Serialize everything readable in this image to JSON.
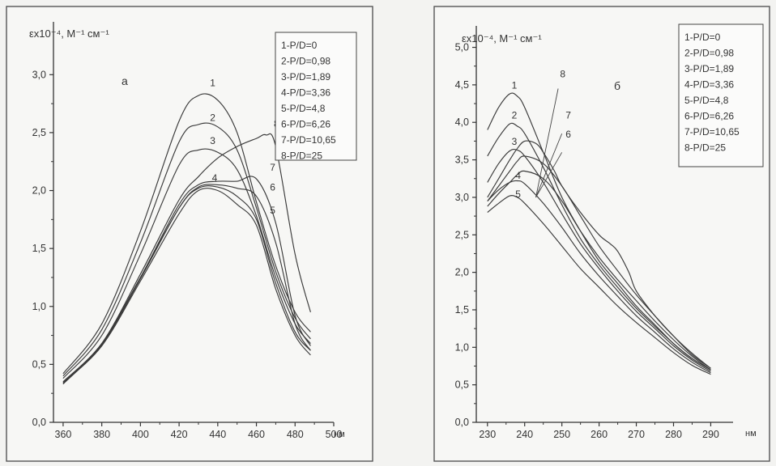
{
  "chart_data": [
    {
      "type": "line",
      "title": "а",
      "ylabel": "εx10⁻⁴, M⁻¹ см⁻¹",
      "xlabel": "нм",
      "xlim": [
        355,
        500
      ],
      "ylim": [
        0,
        3.4
      ],
      "xticks": [
        360,
        380,
        400,
        420,
        440,
        460,
        480,
        500
      ],
      "xtick_labels": [
        "360",
        "380",
        "400",
        "420",
        "440",
        "460",
        "480",
        "500"
      ],
      "yticks": [
        0,
        0.5,
        1.0,
        1.5,
        2.0,
        2.5,
        3.0
      ],
      "ytick_labels": [
        "0,0",
        "0,5",
        "1,0",
        "1,5",
        "2,0",
        "2,5",
        "3,0"
      ],
      "legend": [
        "1-P/D=0",
        "2-P/D=0,98",
        "3-P/D=1,89",
        "4-P/D=3,36",
        "5-P/D=4,8",
        "6-P/D=6,26",
        "7-P/D=10,65",
        "8-P/D=25"
      ],
      "legend_position": "top-right",
      "grid": false,
      "series": [
        {
          "name": "1",
          "label_at": [
            436,
            2.9
          ],
          "x": [
            360,
            380,
            400,
            420,
            430,
            440,
            450,
            460,
            470,
            480,
            488
          ],
          "y": [
            0.42,
            0.85,
            1.65,
            2.6,
            2.82,
            2.78,
            2.5,
            1.9,
            1.35,
            0.95,
            0.78
          ]
        },
        {
          "name": "2",
          "label_at": [
            436,
            2.6
          ],
          "x": [
            360,
            380,
            400,
            420,
            430,
            440,
            450,
            460,
            470,
            480,
            488
          ],
          "y": [
            0.4,
            0.8,
            1.55,
            2.42,
            2.57,
            2.55,
            2.35,
            1.85,
            1.3,
            0.9,
            0.72
          ]
        },
        {
          "name": "3",
          "label_at": [
            436,
            2.4
          ],
          "x": [
            360,
            380,
            400,
            420,
            430,
            440,
            450,
            460,
            470,
            480,
            488
          ],
          "y": [
            0.38,
            0.75,
            1.45,
            2.22,
            2.35,
            2.33,
            2.18,
            1.78,
            1.25,
            0.85,
            0.68
          ]
        },
        {
          "name": "4",
          "label_at": [
            437,
            2.08
          ],
          "x": [
            360,
            380,
            400,
            420,
            430,
            440,
            450,
            460,
            470,
            480,
            488
          ],
          "y": [
            0.35,
            0.68,
            1.25,
            1.85,
            2.02,
            2.03,
            1.95,
            1.75,
            1.2,
            0.78,
            0.62
          ]
        },
        {
          "name": "5",
          "label_at": [
            467,
            1.8
          ],
          "x": [
            360,
            380,
            400,
            420,
            430,
            440,
            450,
            460,
            470,
            480,
            488
          ],
          "y": [
            0.34,
            0.66,
            1.22,
            1.8,
            2.0,
            2.0,
            1.88,
            1.7,
            1.15,
            0.75,
            0.58
          ]
        },
        {
          "name": "6",
          "label_at": [
            467,
            2.0
          ],
          "x": [
            360,
            380,
            400,
            420,
            430,
            440,
            450,
            460,
            470,
            480,
            488
          ],
          "y": [
            0.34,
            0.67,
            1.24,
            1.85,
            2.03,
            2.05,
            2.02,
            1.95,
            1.55,
            0.85,
            0.62
          ]
        },
        {
          "name": "7",
          "label_at": [
            467,
            2.17
          ],
          "x": [
            360,
            380,
            400,
            420,
            430,
            440,
            450,
            460,
            470,
            480,
            488
          ],
          "y": [
            0.34,
            0.68,
            1.25,
            1.88,
            2.05,
            2.08,
            2.08,
            2.1,
            1.72,
            0.92,
            0.66
          ]
        },
        {
          "name": "8",
          "label_at": [
            469,
            2.55
          ],
          "x": [
            360,
            380,
            400,
            420,
            430,
            440,
            450,
            460,
            465,
            470,
            480,
            488
          ],
          "y": [
            0.33,
            0.68,
            1.28,
            1.92,
            2.12,
            2.28,
            2.38,
            2.45,
            2.48,
            2.38,
            1.45,
            0.95
          ]
        }
      ]
    },
    {
      "type": "line",
      "title": "б",
      "ylabel": "εx10⁻⁴, M⁻¹ см⁻¹",
      "xlabel": "нм",
      "xlim": [
        227,
        296
      ],
      "ylim": [
        0,
        5.2
      ],
      "xticks": [
        230,
        240,
        250,
        260,
        270,
        280,
        290
      ],
      "xtick_labels": [
        "230",
        "240",
        "250",
        "260",
        "270",
        "280",
        "290"
      ],
      "yticks": [
        0,
        0.5,
        1.0,
        1.5,
        2.0,
        2.5,
        3.0,
        3.5,
        4.0,
        4.5,
        5.0
      ],
      "ytick_labels": [
        "0,0",
        "0,5",
        "1,0",
        "1,5",
        "2,0",
        "2,5",
        "3,0",
        "3,5",
        "4,0",
        "4,5",
        "5,0"
      ],
      "legend": [
        "1-P/D=0",
        "2-P/D=0,98",
        "3-P/D=1,89",
        "4-P/D=3,36",
        "5-P/D=4,8",
        "6-P/D=6,26",
        "7-P/D=10,65",
        "8-P/D=25"
      ],
      "legend_position": "top-right",
      "grid": false,
      "series": [
        {
          "name": "1",
          "label_at": [
            236.5,
            4.45
          ],
          "x": [
            230,
            233,
            236,
            238,
            240,
            245,
            250,
            255,
            260,
            265,
            270,
            275,
            280,
            285,
            290
          ],
          "y": [
            3.9,
            4.2,
            4.38,
            4.35,
            4.2,
            3.6,
            3.0,
            2.55,
            2.15,
            1.85,
            1.55,
            1.3,
            1.05,
            0.85,
            0.7
          ]
        },
        {
          "name": "2",
          "label_at": [
            236.5,
            4.05
          ],
          "x": [
            230,
            233,
            236,
            238,
            240,
            245,
            250,
            255,
            260,
            265,
            270,
            275,
            280,
            285,
            290
          ],
          "y": [
            3.55,
            3.8,
            3.98,
            3.95,
            3.85,
            3.4,
            2.9,
            2.45,
            2.1,
            1.8,
            1.52,
            1.28,
            1.05,
            0.85,
            0.7
          ]
        },
        {
          "name": "3",
          "label_at": [
            236.5,
            3.7
          ],
          "x": [
            230,
            233,
            236,
            238,
            240,
            245,
            250,
            255,
            260,
            265,
            270,
            275,
            280,
            285,
            290
          ],
          "y": [
            3.2,
            3.45,
            3.62,
            3.63,
            3.55,
            3.2,
            2.78,
            2.38,
            2.05,
            1.75,
            1.48,
            1.25,
            1.02,
            0.83,
            0.68
          ]
        },
        {
          "name": "4",
          "label_at": [
            237.5,
            3.25
          ],
          "x": [
            230,
            233,
            236,
            238,
            240,
            245,
            250,
            255,
            260,
            265,
            270,
            275,
            280,
            285,
            290
          ],
          "y": [
            2.95,
            3.1,
            3.2,
            3.22,
            3.18,
            2.92,
            2.6,
            2.25,
            1.95,
            1.68,
            1.42,
            1.2,
            0.98,
            0.8,
            0.66
          ]
        },
        {
          "name": "5",
          "label_at": [
            237.5,
            3.0
          ],
          "x": [
            230,
            233,
            236,
            238,
            240,
            245,
            250,
            255,
            260,
            265,
            270,
            275,
            280,
            285,
            290
          ],
          "y": [
            2.8,
            2.92,
            3.02,
            3.0,
            2.92,
            2.65,
            2.35,
            2.05,
            1.8,
            1.55,
            1.33,
            1.13,
            0.93,
            0.76,
            0.64
          ]
        },
        {
          "name": "6",
          "label_at": [
            251,
            3.8
          ],
          "x": [
            230,
            233,
            236,
            238,
            240,
            245,
            250,
            255,
            260,
            265,
            270,
            275,
            280,
            285,
            290
          ],
          "y": [
            2.88,
            3.05,
            3.2,
            3.3,
            3.35,
            3.25,
            2.95,
            2.55,
            2.2,
            1.9,
            1.62,
            1.35,
            1.1,
            0.88,
            0.7
          ]
        },
        {
          "name": "7",
          "label_at": [
            251,
            4.05
          ],
          "x": [
            230,
            233,
            236,
            238,
            240,
            245,
            250,
            255,
            260,
            265,
            270,
            275,
            280,
            285,
            290
          ],
          "y": [
            2.95,
            3.15,
            3.35,
            3.48,
            3.55,
            3.45,
            3.15,
            2.75,
            2.35,
            2.02,
            1.7,
            1.42,
            1.15,
            0.9,
            0.72
          ]
        },
        {
          "name": "8",
          "label_at": [
            249.5,
            4.6
          ],
          "x": [
            230,
            233,
            236,
            238,
            240,
            243,
            245,
            248,
            250,
            255,
            260,
            263,
            265,
            268,
            270,
            275,
            280,
            285,
            290
          ],
          "y": [
            3.0,
            3.25,
            3.5,
            3.65,
            3.75,
            3.72,
            3.6,
            3.35,
            3.15,
            2.8,
            2.5,
            2.38,
            2.28,
            2.0,
            1.75,
            1.42,
            1.15,
            0.92,
            0.72
          ]
        }
      ]
    }
  ]
}
